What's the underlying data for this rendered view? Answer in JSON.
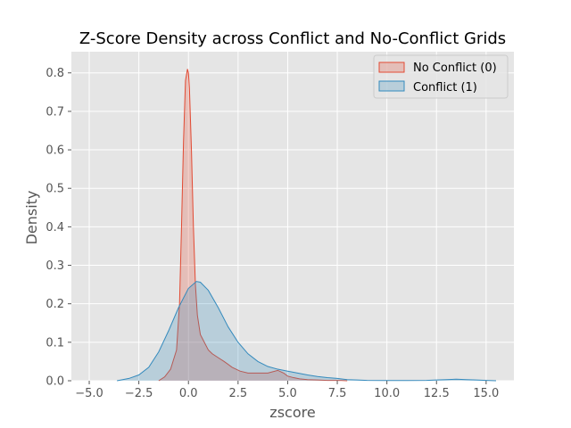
{
  "chart_data": {
    "type": "area",
    "title": "Z-Score Density across Conflict and No-Conflict Grids",
    "xlabel": "zscore",
    "ylabel": "Density",
    "xlim": [
      -5.9,
      16.4
    ],
    "ylim": [
      0,
      0.855
    ],
    "xticks": [
      -5.0,
      -2.5,
      0.0,
      2.5,
      5.0,
      7.5,
      10.0,
      12.5,
      15.0
    ],
    "xtick_labels": [
      "−5.0",
      "−2.5",
      "0.0",
      "2.5",
      "5.0",
      "7.5",
      "10.0",
      "12.5",
      "15.0"
    ],
    "yticks": [
      0.0,
      0.1,
      0.2,
      0.3,
      0.4,
      0.5,
      0.6,
      0.7,
      0.8
    ],
    "ytick_labels": [
      "0.0",
      "0.1",
      "0.2",
      "0.3",
      "0.4",
      "0.5",
      "0.6",
      "0.7",
      "0.8"
    ],
    "grid": true,
    "legend_position": "top-right",
    "background_color": "#e5e5e5",
    "grid_color": "#ffffff",
    "series": [
      {
        "name": "No Conflict (0)",
        "color": "#e24a33",
        "fill_opacity": 0.25,
        "x": [
          -1.5,
          -1.2,
          -0.9,
          -0.6,
          -0.45,
          -0.35,
          -0.25,
          -0.15,
          -0.05,
          0.0,
          0.05,
          0.15,
          0.25,
          0.35,
          0.45,
          0.6,
          0.8,
          1.0,
          1.2,
          1.5,
          1.8,
          2.2,
          2.6,
          3.0,
          3.5,
          4.0,
          4.5,
          4.8,
          5.0,
          5.3,
          5.6,
          6.0,
          6.5,
          7.0,
          7.5,
          8.0
        ],
        "y": [
          0.0,
          0.01,
          0.03,
          0.08,
          0.2,
          0.4,
          0.62,
          0.78,
          0.81,
          0.8,
          0.76,
          0.6,
          0.4,
          0.25,
          0.17,
          0.12,
          0.1,
          0.08,
          0.07,
          0.06,
          0.05,
          0.035,
          0.025,
          0.02,
          0.02,
          0.02,
          0.027,
          0.02,
          0.012,
          0.008,
          0.005,
          0.003,
          0.002,
          0.001,
          0.001,
          0.0
        ]
      },
      {
        "name": "Conflict (1)",
        "color": "#348abd",
        "fill_opacity": 0.25,
        "x": [
          -3.6,
          -3.0,
          -2.5,
          -2.0,
          -1.5,
          -1.0,
          -0.5,
          0.0,
          0.4,
          0.6,
          1.0,
          1.5,
          2.0,
          2.5,
          3.0,
          3.5,
          4.0,
          4.5,
          5.0,
          5.5,
          6.0,
          6.5,
          7.0,
          7.5,
          8.0,
          8.5,
          9.0,
          10.0,
          11.0,
          12.0,
          12.5,
          13.0,
          13.5,
          14.0,
          14.5,
          15.0,
          15.5
        ],
        "y": [
          0.0,
          0.006,
          0.015,
          0.035,
          0.075,
          0.13,
          0.19,
          0.24,
          0.258,
          0.256,
          0.235,
          0.19,
          0.14,
          0.1,
          0.07,
          0.05,
          0.037,
          0.03,
          0.025,
          0.02,
          0.015,
          0.011,
          0.008,
          0.006,
          0.003,
          0.002,
          0.001,
          0.0005,
          0.0005,
          0.001,
          0.002,
          0.003,
          0.004,
          0.003,
          0.002,
          0.001,
          0.0
        ]
      }
    ]
  }
}
